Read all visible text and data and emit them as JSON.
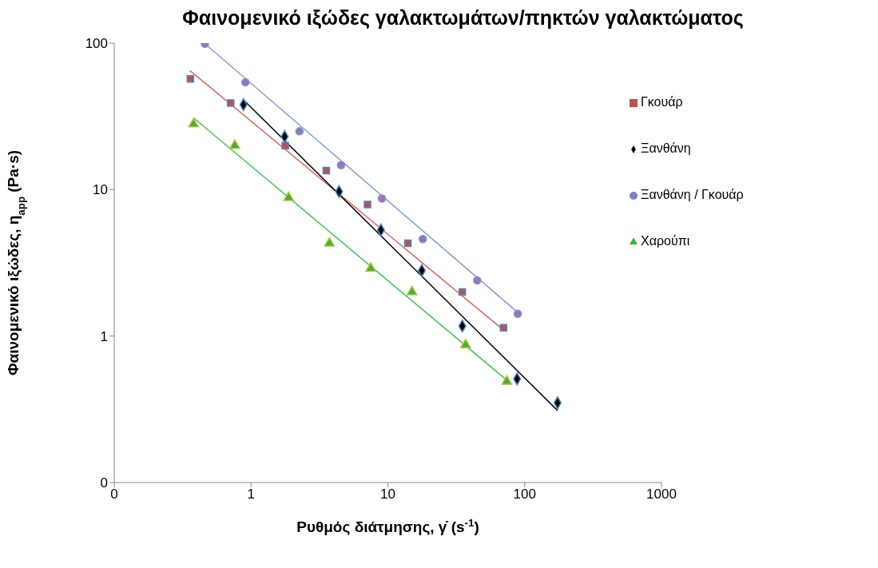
{
  "chart_data": {
    "type": "scatter",
    "title": "Φαινομενικό ιξώδες  γαλακτωμάτων/πηκτών γαλακτώματος",
    "xlabel": "Ρυθμός διάτμησης, γ̇ (s$^{-1}$)",
    "ylabel": "Φαινομενικό ιξώδες, η$_{app}$ (Pa·s)",
    "log": "xy",
    "xlim": [
      0.1,
      1000
    ],
    "ylim": [
      0.1,
      100
    ],
    "xticks": [
      {
        "value": 0.1,
        "label": "0"
      },
      1,
      10,
      100,
      1000
    ],
    "yticks": [
      {
        "value": 0.1,
        "label": "0"
      },
      1,
      10,
      100
    ],
    "grid": false,
    "legend": "top right",
    "series": [
      {
        "type": "line",
        "color": "#7aa0d8",
        "marker": "none",
        "x": [
          0.46,
          89
        ],
        "values": [
          99,
          1.45
        ]
      },
      {
        "type": "line",
        "color": "#d9695f",
        "marker": "none",
        "x": [
          0.357,
          70
        ],
        "values": [
          65,
          1.1
        ]
      },
      {
        "type": "line",
        "color": "#3cc850",
        "marker": "none",
        "x": [
          0.378,
          74
        ],
        "values": [
          31,
          0.5
        ]
      },
      {
        "type": "line",
        "color": "#000000",
        "marker": "none",
        "x": [
          0.88,
          174
        ],
        "values": [
          41,
          0.31
        ]
      },
      {
        "name": "Ξανθάνη",
        "color": "#000000",
        "marker": "diamond",
        "x": [
          0.88,
          1.76,
          4.4,
          8.9,
          17.7,
          35,
          88,
          174
        ],
        "values": [
          38,
          23,
          9.7,
          5.3,
          2.8,
          1.17,
          0.51,
          0.35
        ]
      },
      {
        "name": "Γκουάρ",
        "color": "#c0504d",
        "marker": "square",
        "x": [
          0.36,
          0.71,
          1.78,
          3.55,
          7.1,
          14,
          35,
          70
        ],
        "values": [
          57,
          39,
          20,
          13.5,
          7.9,
          4.3,
          2,
          1.14
        ]
      },
      {
        "name": "Χαρούπι",
        "color": "#40b040",
        "marker": "triangle",
        "x": [
          0.38,
          0.76,
          1.88,
          3.74,
          7.5,
          15,
          37,
          74
        ],
        "values": [
          28,
          20,
          8.8,
          4.3,
          2.9,
          2,
          0.87,
          0.49
        ]
      },
      {
        "name": "Ξανθάνη / Γκουάρ",
        "color": "#7b7fd0",
        "marker": "circle",
        "x": [
          0.46,
          0.91,
          2.26,
          4.55,
          9.05,
          18,
          45,
          89
        ],
        "values": [
          99,
          54,
          25,
          14.7,
          8.7,
          4.6,
          2.4,
          1.42
        ]
      }
    ]
  }
}
